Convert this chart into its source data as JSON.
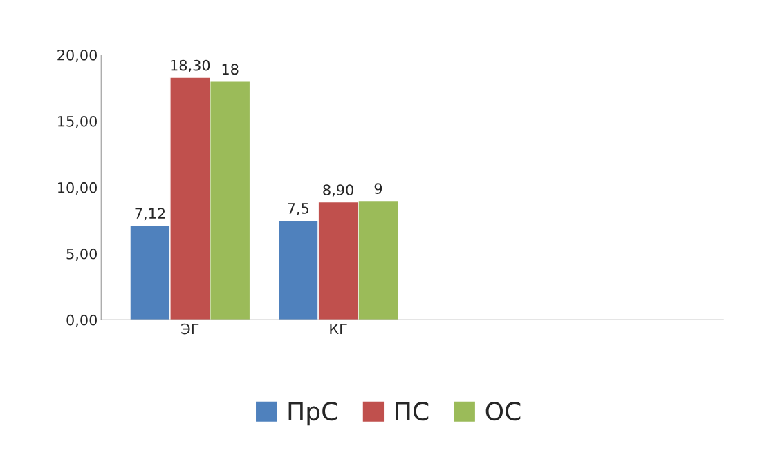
{
  "chart_data": {
    "type": "bar",
    "categories": [
      "ЭГ",
      "КГ",
      null,
      null
    ],
    "series": [
      {
        "name": "ПрС",
        "color": "#4f81bd",
        "values": [
          7.12,
          7.5,
          null,
          null
        ],
        "value_labels": [
          "7,12",
          "7,5",
          null,
          null
        ]
      },
      {
        "name": "ПС",
        "color": "#c0504d",
        "values": [
          18.3,
          8.9,
          null,
          null
        ],
        "value_labels": [
          "18,30",
          "8,90",
          null,
          null
        ]
      },
      {
        "name": "ОС",
        "color": "#9bbb59",
        "values": [
          18,
          9,
          null,
          null
        ],
        "value_labels": [
          "18",
          "9",
          null,
          null
        ]
      }
    ],
    "ylim": [
      0,
      20
    ],
    "yticks": [
      {
        "value": 0,
        "label": "0,00"
      },
      {
        "value": 5,
        "label": "5,00"
      },
      {
        "value": 10,
        "label": "10,00"
      },
      {
        "value": 15,
        "label": "15,00"
      },
      {
        "value": 20,
        "label": "20,00"
      }
    ],
    "grid": false,
    "legend": "bottom"
  }
}
